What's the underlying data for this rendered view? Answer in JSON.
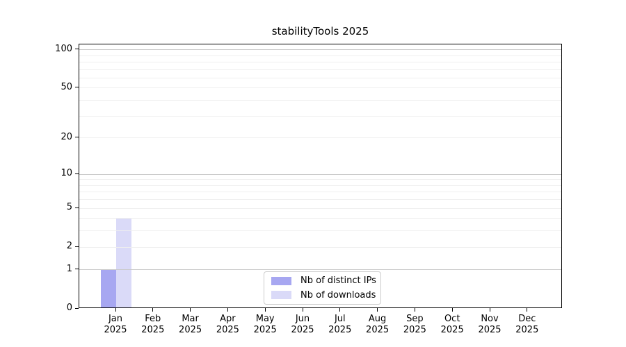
{
  "chart_data": {
    "type": "bar",
    "title": "stabilityTools 2025",
    "xlabel": "",
    "ylabel": "",
    "categories": [
      "Jan 2025",
      "Feb 2025",
      "Mar 2025",
      "Apr 2025",
      "May 2025",
      "Jun 2025",
      "Jul 2025",
      "Aug 2025",
      "Sep 2025",
      "Oct 2025",
      "Nov 2025",
      "Dec 2025"
    ],
    "xtick_labels": [
      [
        "Jan",
        "2025"
      ],
      [
        "Feb",
        "2025"
      ],
      [
        "Mar",
        "2025"
      ],
      [
        "Apr",
        "2025"
      ],
      [
        "May",
        "2025"
      ],
      [
        "Jun",
        "2025"
      ],
      [
        "Jul",
        "2025"
      ],
      [
        "Aug",
        "2025"
      ],
      [
        "Sep",
        "2025"
      ],
      [
        "Oct",
        "2025"
      ],
      [
        "Nov",
        "2025"
      ],
      [
        "Dec",
        "2025"
      ]
    ],
    "series": [
      {
        "name": "Nb of distinct IPs",
        "color": "#a7a7f1",
        "values": [
          1,
          0,
          0,
          0,
          0,
          0,
          0,
          0,
          0,
          0,
          0,
          0
        ]
      },
      {
        "name": "Nb of downloads",
        "color": "#dadaf8",
        "values": [
          4,
          0,
          0,
          0,
          0,
          0,
          0,
          0,
          0,
          0,
          0,
          0
        ]
      }
    ],
    "yscale": "log1p",
    "ylim": [
      0,
      110
    ],
    "yticks": [
      {
        "value": 0,
        "label": "0"
      },
      {
        "value": 1,
        "label": "1"
      },
      {
        "value": 2,
        "label": "2"
      },
      {
        "value": 5,
        "label": "5"
      },
      {
        "value": 10,
        "label": "10"
      },
      {
        "value": 20,
        "label": "20"
      },
      {
        "value": 50,
        "label": "50"
      },
      {
        "value": 100,
        "label": "100"
      }
    ],
    "major_gridlines": [
      1,
      10,
      100
    ],
    "minor_gridlines": [
      2,
      3,
      4,
      5,
      6,
      7,
      8,
      9,
      20,
      30,
      40,
      50,
      60,
      70,
      80,
      90
    ],
    "grid": "horizontal",
    "legend_position": "bottom-center"
  },
  "colors": {
    "background": "#ffffff",
    "axis": "#000000",
    "text": "#000000",
    "major_grid": "#c9c9c9",
    "minor_grid": "#efefef",
    "legend_border": "#cccccc"
  }
}
